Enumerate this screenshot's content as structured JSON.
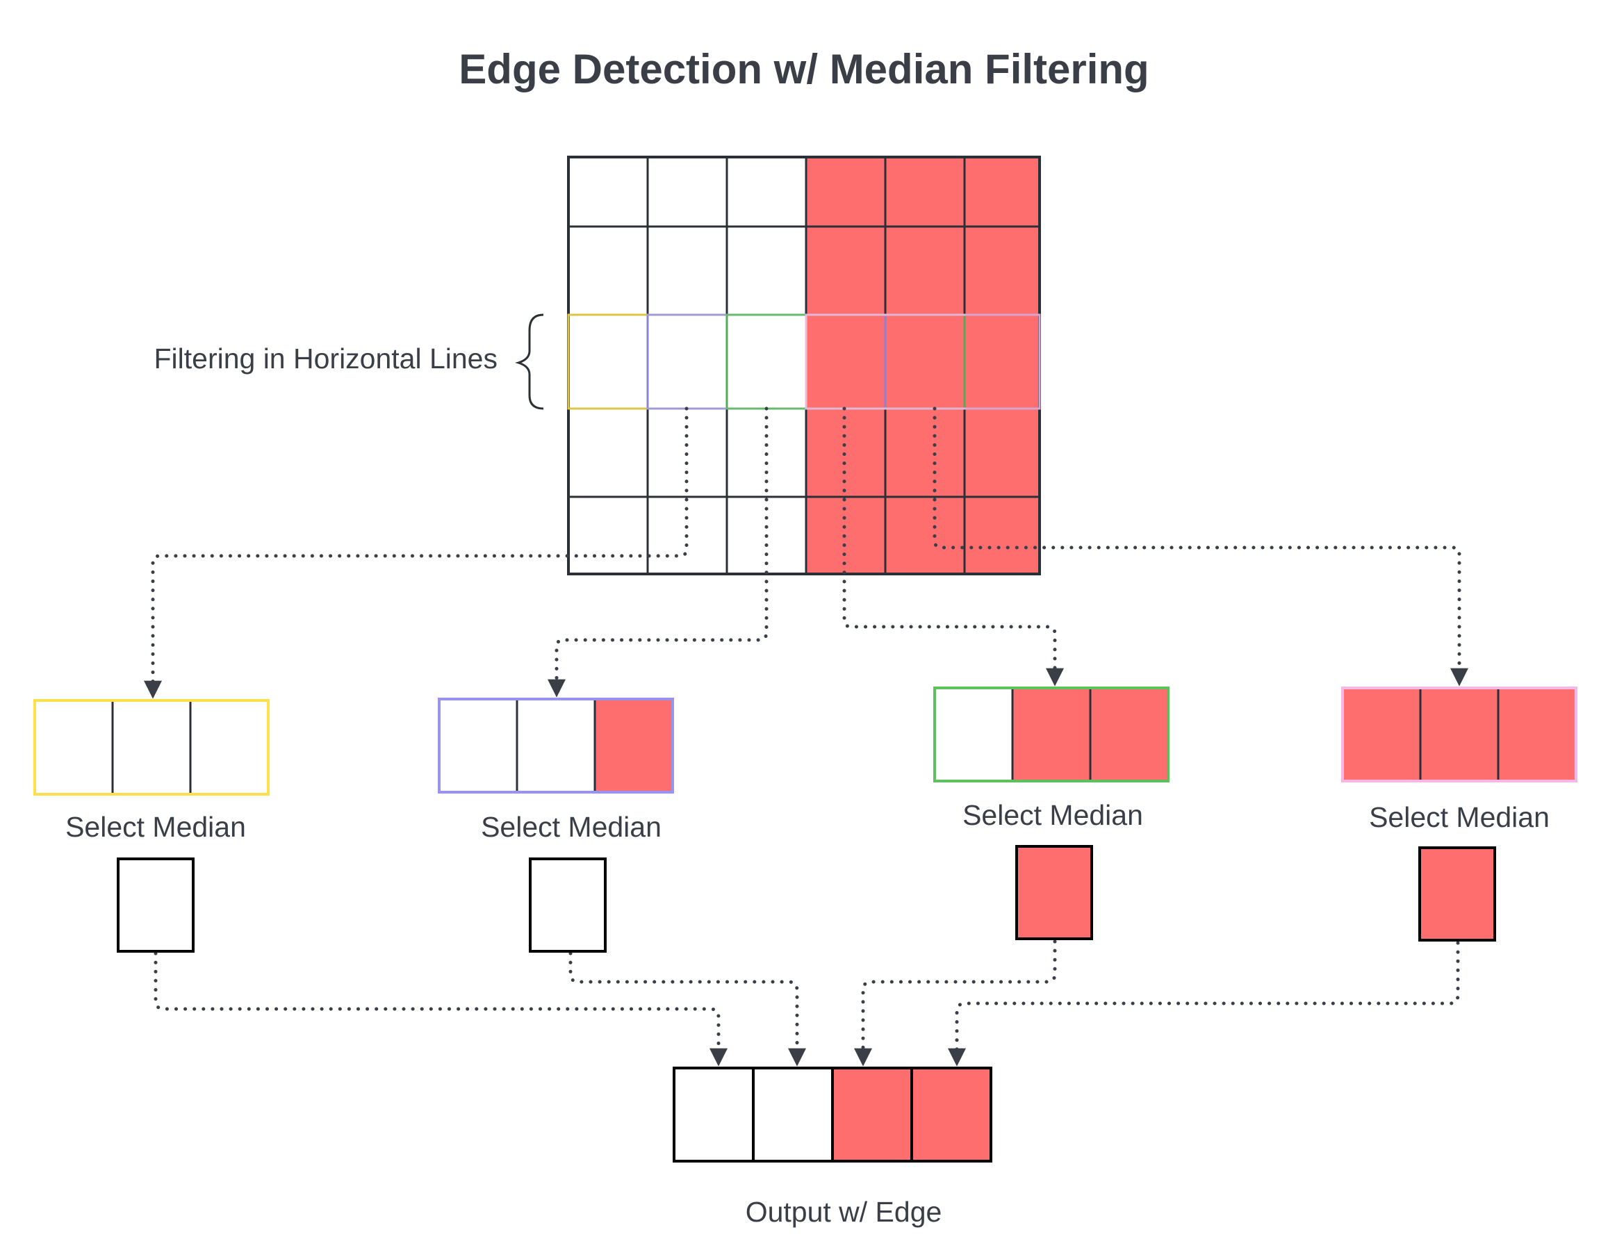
{
  "title": "Edge Detection w/ Median Filtering",
  "brace_label": "Filtering in Horizontal Lines",
  "window_caption": "Select Median",
  "output_caption": "Output w/ Edge",
  "colors": {
    "filled": "#ff6e6e",
    "empty": "#ffffff",
    "line": "#2b2f36",
    "text": "#3a3f47",
    "connector": "#3a3f47",
    "window_1": "#ffdf4a",
    "window_2": "#9a93ee",
    "window_3": "#5cc05c",
    "window_4": "#f5b8e6"
  },
  "input_grid": [
    [
      0,
      0,
      0,
      1,
      1,
      1
    ],
    [
      0,
      0,
      0,
      1,
      1,
      1
    ],
    [
      0,
      0,
      0,
      1,
      1,
      1
    ],
    [
      0,
      0,
      0,
      1,
      1,
      1
    ],
    [
      0,
      0,
      0,
      1,
      1,
      1
    ]
  ],
  "windows": [
    {
      "cells": [
        0,
        0,
        0
      ],
      "median": 0
    },
    {
      "cells": [
        0,
        0,
        1
      ],
      "median": 0
    },
    {
      "cells": [
        0,
        1,
        1
      ],
      "median": 1
    },
    {
      "cells": [
        1,
        1,
        1
      ],
      "median": 1
    }
  ],
  "output": [
    0,
    0,
    1,
    1
  ]
}
